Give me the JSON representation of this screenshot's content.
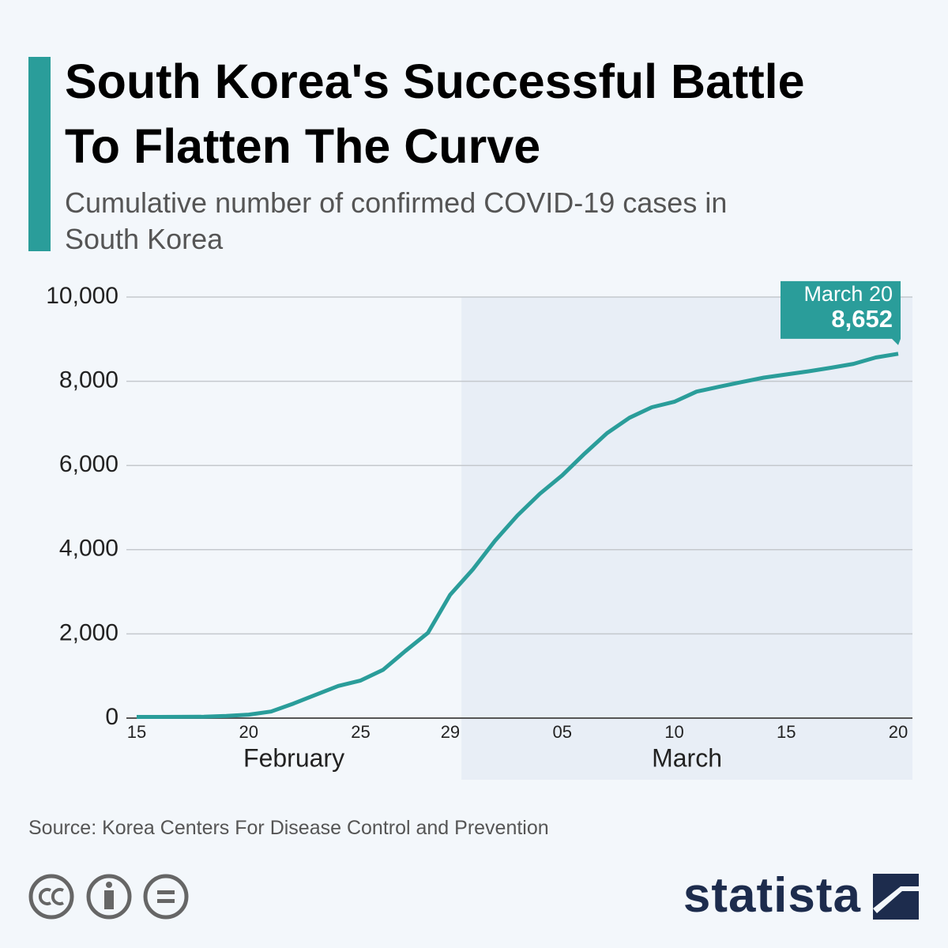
{
  "chart_data": {
    "type": "line",
    "title": "South Korea's Successful Battle To Flatten The Curve",
    "subtitle": "Cumulative number of confirmed COVID-19 cases in South Korea",
    "categories": [
      "15",
      null,
      null,
      null,
      null,
      "20",
      null,
      null,
      null,
      null,
      "25",
      null,
      null,
      null,
      "29",
      null,
      null,
      null,
      null,
      "05",
      null,
      null,
      null,
      null,
      "10",
      null,
      null,
      null,
      null,
      "15",
      null,
      null,
      null,
      null,
      "20"
    ],
    "months": [
      "February",
      "March"
    ],
    "values": [
      28,
      29,
      30,
      31,
      51,
      82,
      156,
      346,
      556,
      763,
      893,
      1146,
      1595,
      2022,
      2931,
      3526,
      4212,
      4812,
      5328,
      5766,
      6284,
      6767,
      7134,
      7382,
      7513,
      7755,
      7869,
      7979,
      8086,
      8162,
      8236,
      8320,
      8413,
      8565,
      8652
    ],
    "value_labels": [
      null,
      null,
      null,
      null,
      null,
      null,
      null,
      null,
      null,
      null,
      null,
      null,
      null,
      null,
      null,
      null,
      null,
      null,
      null,
      null,
      null,
      null,
      null,
      null,
      null,
      null,
      null,
      null,
      null,
      null,
      null,
      null,
      null,
      null,
      "8,652"
    ],
    "annotation": "March 20",
    "color": "#2a9d9a",
    "ylim": [
      0,
      10000
    ],
    "yticks": [
      0,
      {
        "value": 2000,
        "label": "2,000"
      },
      {
        "value": 4000,
        "label": "4,000"
      },
      {
        "value": 6000,
        "label": "6,000"
      },
      {
        "value": 8000,
        "label": "8,000"
      },
      {
        "value": 10000,
        "label": "10,000"
      }
    ],
    "grid": true,
    "source": "Source: Korea Centers For Disease Control and Prevention",
    "brand": "statista"
  }
}
